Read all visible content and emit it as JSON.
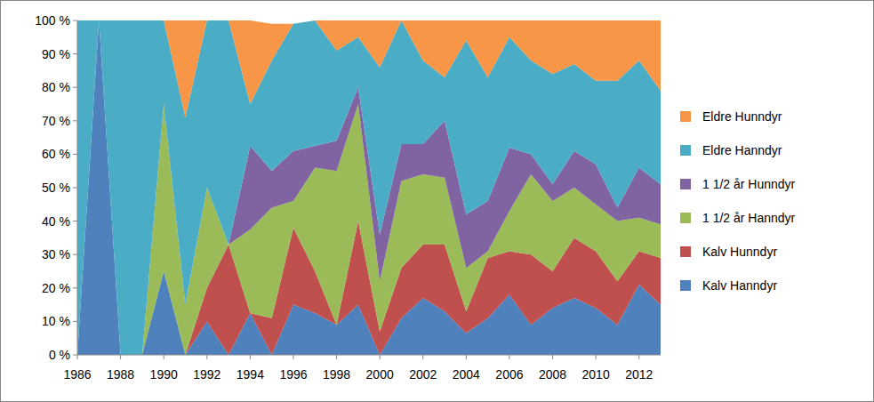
{
  "chart_data": {
    "type": "area",
    "stacked": true,
    "grid": false,
    "legend": "right",
    "x": [
      1986,
      1987,
      1988,
      1989,
      1990,
      1991,
      1992,
      1993,
      1994,
      1995,
      1996,
      1997,
      1998,
      1999,
      2000,
      2001,
      2002,
      2003,
      2004,
      2005,
      2006,
      2007,
      2008,
      2009,
      2010,
      2011,
      2012,
      2013
    ],
    "xlim": [
      1986,
      2013
    ],
    "xticks": [
      1986,
      1988,
      1990,
      1992,
      1994,
      1996,
      1998,
      2000,
      2002,
      2004,
      2006,
      2008,
      2010,
      2012
    ],
    "ylim": [
      0,
      100
    ],
    "yticks": [
      {
        "value": 0,
        "label": "0 %"
      },
      {
        "value": 10,
        "label": "10 %"
      },
      {
        "value": 20,
        "label": "20 %"
      },
      {
        "value": 30,
        "label": "30 %"
      },
      {
        "value": 40,
        "label": "40 %"
      },
      {
        "value": 50,
        "label": "50 %"
      },
      {
        "value": 60,
        "label": "60 %"
      },
      {
        "value": 70,
        "label": "70 %"
      },
      {
        "value": 80,
        "label": "80 %"
      },
      {
        "value": 90,
        "label": "90 %"
      },
      {
        "value": 100,
        "label": "100 %"
      }
    ],
    "series": [
      {
        "name": "Kalv Hanndyr",
        "color": "#4F81BD",
        "values": [
          0,
          100,
          0,
          0,
          25,
          0,
          10,
          0,
          12.5,
          0,
          15,
          12.5,
          9,
          15,
          0,
          11,
          17,
          13,
          6.5,
          11,
          18,
          9,
          14,
          17,
          14,
          9,
          21,
          15
        ]
      },
      {
        "name": "Kalv Hunndyr",
        "color": "#C0504D",
        "values": [
          0,
          0,
          0,
          0,
          0,
          0,
          10,
          33,
          0,
          11,
          23,
          12.5,
          0,
          25,
          7,
          15,
          16,
          20,
          6.5,
          18,
          13,
          21,
          11,
          18,
          17,
          13,
          10,
          14
        ]
      },
      {
        "name": "1 1/2 år Hanndyr",
        "color": "#9BBB59",
        "values": [
          0,
          0,
          0,
          0,
          50,
          15,
          30,
          0,
          25,
          33,
          8,
          31,
          46,
          35,
          15,
          26,
          21,
          20,
          13,
          2,
          12,
          24,
          21,
          15,
          14,
          18,
          10,
          10
        ]
      },
      {
        "name": "1 1/2 år Hunndyr",
        "color": "#8064A2",
        "values": [
          0,
          0,
          0,
          0,
          0,
          0,
          0,
          0,
          25,
          11,
          15,
          6.5,
          9,
          5,
          14,
          11,
          9,
          17,
          16,
          15,
          19,
          6,
          5,
          11,
          12,
          4,
          15,
          12
        ]
      },
      {
        "name": "Eldre Hanndyr",
        "color": "#4BACC6",
        "values": [
          100,
          0,
          100,
          100,
          25,
          56,
          50,
          67,
          12.5,
          33,
          38,
          37.5,
          27,
          15,
          50,
          37,
          25,
          13,
          52,
          37,
          33,
          28,
          33,
          26,
          25,
          38,
          32,
          28
        ]
      },
      {
        "name": "Eldre Hunndyr",
        "color": "#F79646",
        "values": [
          0,
          0,
          0,
          0,
          0,
          29,
          0,
          0,
          25,
          11,
          0,
          0,
          9,
          5,
          14,
          0,
          12,
          17,
          6,
          17,
          5,
          12,
          16,
          13,
          18,
          18,
          12,
          21
        ]
      }
    ]
  }
}
